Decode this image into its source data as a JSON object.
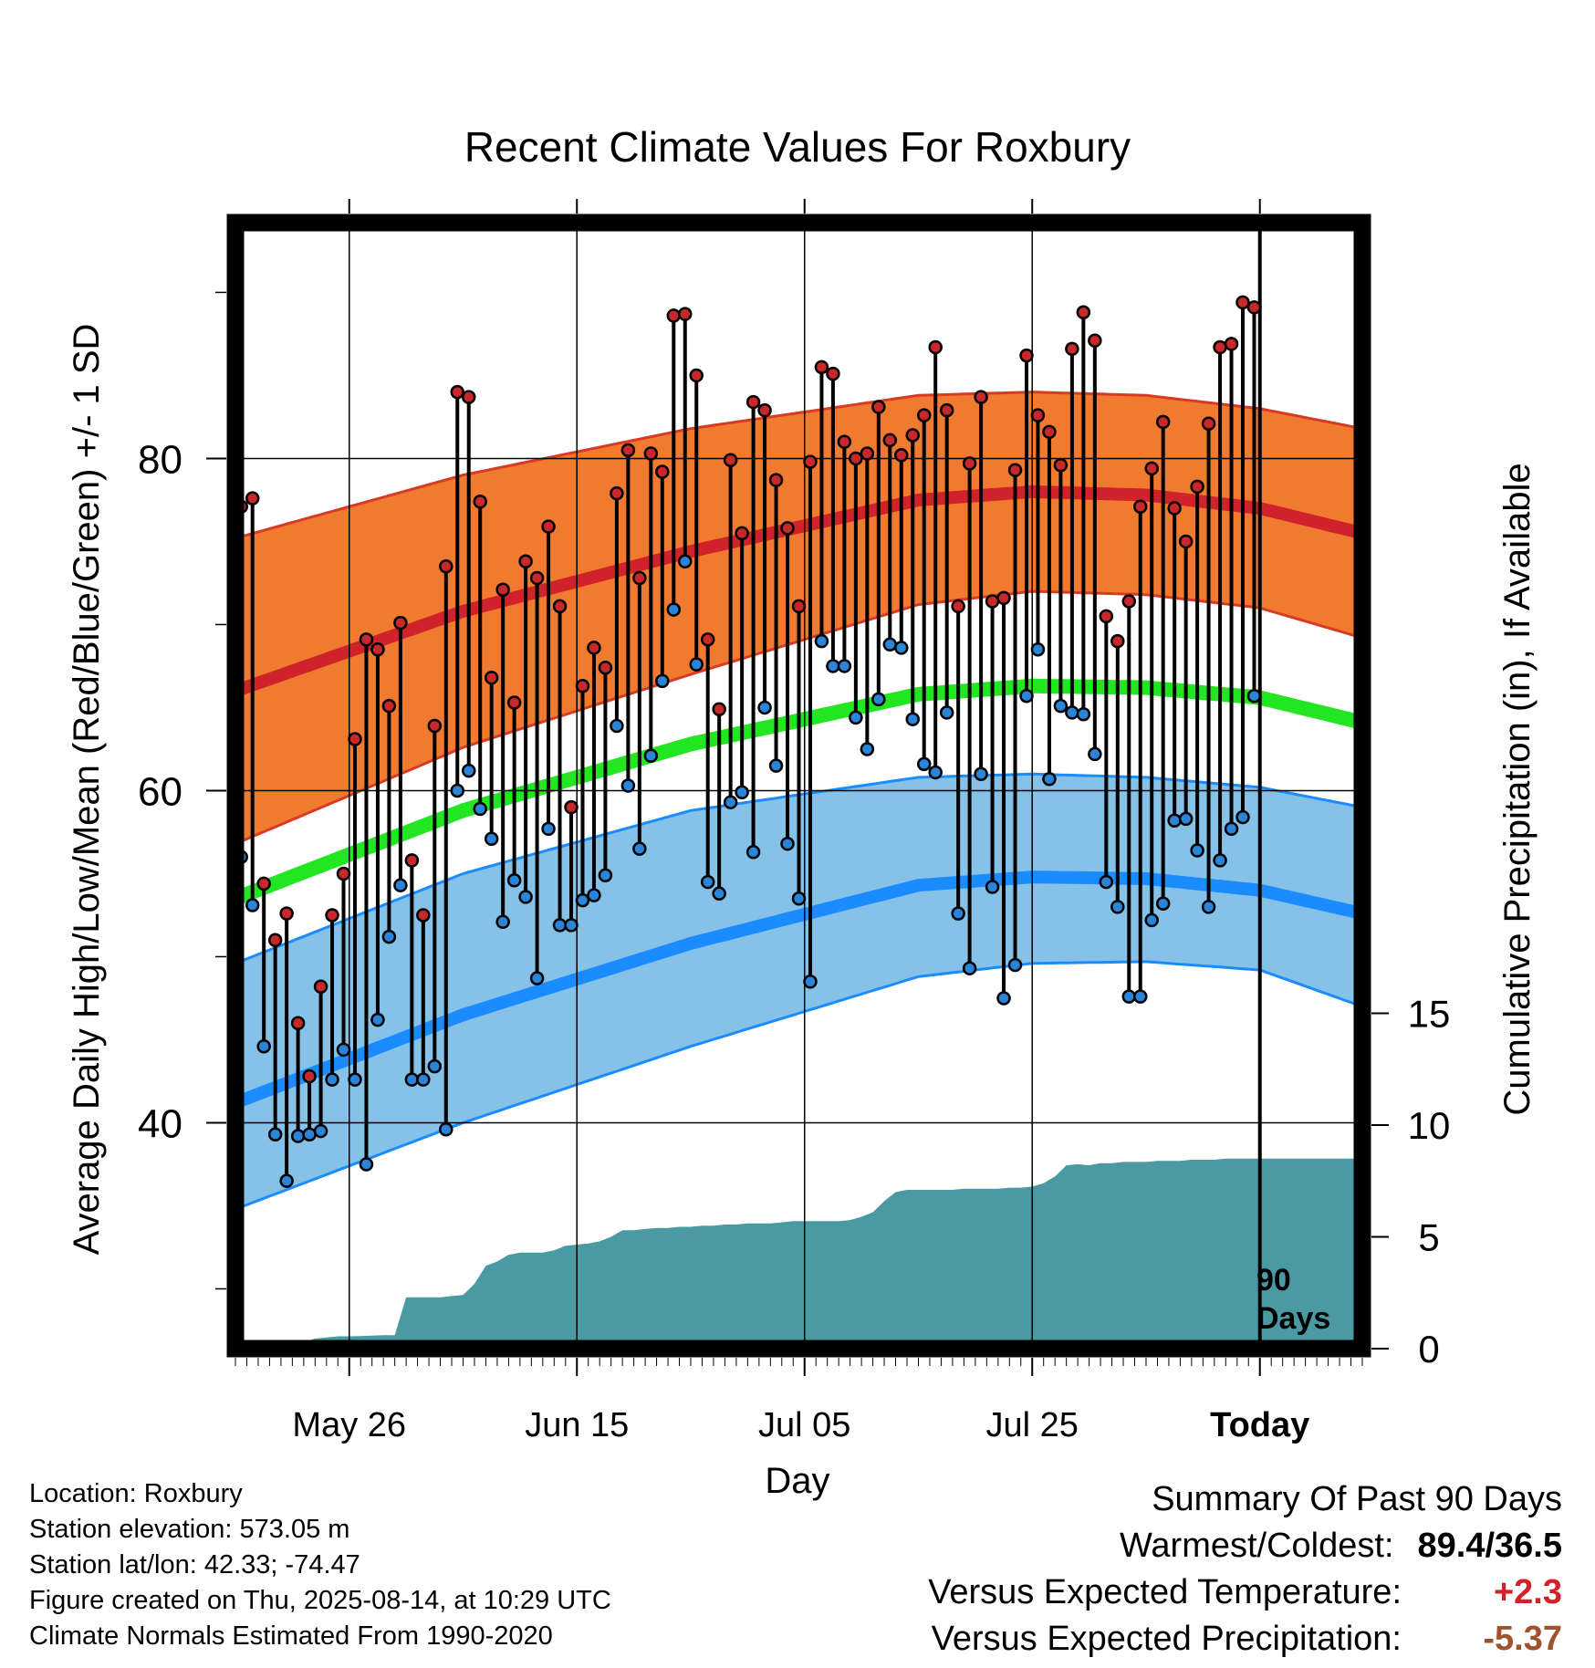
{
  "chart_data": {
    "type": "line",
    "title": "Recent Climate Values For Roxbury",
    "xlabel": "Day",
    "ylabel": "Average Daily High/Low/Mean (Red/Blue/Green) +/- 1 SD",
    "y2label": "Cumulative Precipitation (in), If Available",
    "ylim": [
      26.4,
      94.2
    ],
    "y2lim": [
      0,
      50
    ],
    "xlim": [
      "2025-05-16",
      "2025-08-23"
    ],
    "x_tick_labels": [
      "May 26",
      "Jun 15",
      "Jul 05",
      "Jul 25",
      "Today"
    ],
    "x_tick_dates": [
      "2025-05-26",
      "2025-06-15",
      "2025-07-05",
      "2025-07-25",
      "2025-08-14"
    ],
    "y_tick_labels": [
      "40",
      "60",
      "80"
    ],
    "y2_tick_labels": [
      "0",
      "5",
      "10",
      "15"
    ],
    "today_marker_label": "90\nDays",
    "start_date": "2025-05-16",
    "daily_high": [
      77.1,
      77.6,
      54.4,
      51.0,
      52.6,
      46.0,
      42.8,
      48.2,
      52.5,
      55.0,
      63.1,
      69.1,
      68.5,
      65.1,
      70.1,
      55.8,
      52.5,
      63.9,
      73.5,
      84.0,
      83.7,
      77.4,
      66.8,
      72.1,
      65.3,
      73.8,
      72.8,
      75.9,
      71.1,
      59.0,
      66.3,
      68.6,
      67.4,
      77.9,
      80.5,
      72.8,
      80.3,
      79.2,
      88.6,
      88.7,
      85.0,
      69.1,
      64.9,
      79.9,
      75.5,
      83.4,
      82.9,
      78.7,
      75.8,
      71.1,
      79.8,
      85.5,
      85.1,
      81.0,
      80.0,
      80.3,
      83.1,
      81.1,
      80.2,
      81.4,
      82.6,
      86.7,
      82.9,
      71.1,
      79.7,
      83.7,
      71.4,
      71.6,
      79.3,
      86.2,
      82.6,
      81.6,
      79.6,
      86.6,
      88.8,
      87.1,
      70.5,
      69.0,
      71.4,
      77.1,
      79.4,
      82.2,
      77.0,
      75.0,
      78.3,
      82.1,
      86.7,
      86.9,
      89.4,
      89.1
    ],
    "daily_low": [
      56.0,
      53.1,
      44.6,
      39.3,
      36.5,
      39.2,
      39.3,
      39.5,
      42.6,
      44.4,
      42.6,
      37.5,
      46.2,
      51.2,
      54.3,
      42.6,
      42.6,
      43.4,
      39.6,
      60.0,
      61.2,
      58.9,
      57.1,
      52.1,
      54.6,
      53.6,
      48.7,
      57.7,
      51.9,
      51.9,
      53.4,
      53.7,
      54.9,
      63.9,
      60.3,
      56.5,
      62.1,
      66.6,
      70.9,
      73.8,
      67.6,
      54.5,
      53.8,
      59.3,
      59.9,
      56.3,
      65.0,
      61.5,
      56.8,
      53.5,
      48.5,
      69.0,
      67.5,
      67.5,
      64.4,
      62.5,
      65.5,
      68.8,
      68.6,
      64.3,
      61.6,
      61.1,
      64.7,
      52.6,
      49.3,
      61.0,
      54.2,
      47.5,
      49.5,
      65.7,
      68.5,
      60.7,
      65.1,
      64.7,
      64.6,
      62.2,
      54.5,
      53.0,
      47.6,
      47.6,
      52.2,
      53.2,
      58.2,
      58.3,
      56.4,
      53.0,
      55.8,
      57.7,
      58.4,
      65.7
    ],
    "normal_high": {
      "x_days": [
        0,
        20,
        40,
        60,
        70,
        80,
        90,
        99
      ],
      "values": [
        66.0,
        70.8,
        74.4,
        77.5,
        78.0,
        77.8,
        77.0,
        75.5
      ]
    },
    "normal_high_sd_upper": {
      "x_days": [
        0,
        20,
        40,
        60,
        70,
        80,
        90,
        99
      ],
      "values": [
        75.2,
        79.0,
        81.8,
        83.8,
        84.0,
        83.8,
        83.0,
        81.8
      ]
    },
    "normal_high_sd_lower": {
      "x_days": [
        0,
        20,
        40,
        60,
        70,
        80,
        90,
        99
      ],
      "values": [
        56.8,
        62.6,
        67.0,
        71.2,
        72.0,
        71.8,
        71.0,
        69.2
      ]
    },
    "normal_mean": {
      "x_days": [
        0,
        20,
        40,
        60,
        70,
        80,
        90,
        99
      ],
      "values": [
        53.5,
        58.8,
        62.8,
        65.8,
        66.3,
        66.2,
        65.6,
        64.1
      ]
    },
    "normal_low": {
      "x_days": [
        0,
        20,
        40,
        60,
        70,
        80,
        90,
        99
      ],
      "values": [
        41.2,
        46.5,
        50.8,
        54.3,
        54.8,
        54.7,
        54.0,
        52.6
      ]
    },
    "normal_low_sd_upper": {
      "x_days": [
        0,
        20,
        40,
        60,
        70,
        80,
        90,
        99
      ],
      "values": [
        49.6,
        55.0,
        58.8,
        60.8,
        61.0,
        60.8,
        60.2,
        59.0
      ]
    },
    "normal_low_sd_lower": {
      "x_days": [
        0,
        20,
        40,
        60,
        70,
        80,
        90,
        99
      ],
      "values": [
        34.8,
        40.0,
        44.6,
        48.8,
        49.6,
        49.7,
        49.2,
        47.0
      ]
    },
    "cumulative_precip": [
      0,
      0,
      0,
      0,
      0,
      0,
      0.3,
      0.45,
      0.5,
      0.55,
      0.55,
      0.56,
      0.58,
      0.6,
      0.6,
      2.3,
      2.3,
      2.3,
      2.3,
      2.35,
      2.4,
      2.9,
      3.7,
      3.9,
      4.2,
      4.3,
      4.3,
      4.3,
      4.4,
      4.6,
      4.65,
      4.7,
      4.8,
      5.0,
      5.3,
      5.3,
      5.35,
      5.4,
      5.4,
      5.45,
      5.45,
      5.5,
      5.5,
      5.55,
      5.55,
      5.6,
      5.6,
      5.6,
      5.65,
      5.7,
      5.7,
      5.7,
      5.7,
      5.7,
      5.75,
      5.9,
      6.1,
      6.6,
      7.0,
      7.1,
      7.1,
      7.1,
      7.1,
      7.1,
      7.15,
      7.15,
      7.15,
      7.15,
      7.2,
      7.2,
      7.25,
      7.4,
      7.7,
      8.2,
      8.25,
      8.2,
      8.3,
      8.3,
      8.35,
      8.35,
      8.35,
      8.4,
      8.4,
      8.4,
      8.45,
      8.45,
      8.45,
      8.5,
      8.5,
      8.5,
      8.5,
      8.5,
      8.5,
      8.5,
      8.5,
      8.5,
      8.5,
      8.5,
      8.5,
      8.5
    ]
  },
  "colors": {
    "high_band": "#f07a2f",
    "high_line": "#d0222a",
    "low_band": "#86c1e8",
    "low_line": "#1a8cff",
    "mean_line": "#22e622",
    "precip_fill": "#4a9aa4",
    "high_dot": "#c8282a",
    "low_dot": "#2a85d8"
  },
  "info": {
    "location": "Location: Roxbury",
    "elevation": "Station elevation: 573.05 m",
    "latlon": "Station lat/lon: 42.33; -74.47",
    "created": "Figure created on Thu, 2025-08-14, at 10:29 UTC",
    "normals": "Climate Normals Estimated From 1990-2020"
  },
  "summary": {
    "title": "Summary Of Past 90 Days",
    "warmest_coldest_label": "Warmest/Coldest:",
    "warmest_coldest_value": "89.4/36.5",
    "temp_label": "Versus Expected Temperature:",
    "temp_value": "+2.3",
    "temp_color": "#d0222a",
    "precip_label": "Versus Expected Precipitation:",
    "precip_value": "-5.37",
    "precip_color": "#a0522d"
  }
}
